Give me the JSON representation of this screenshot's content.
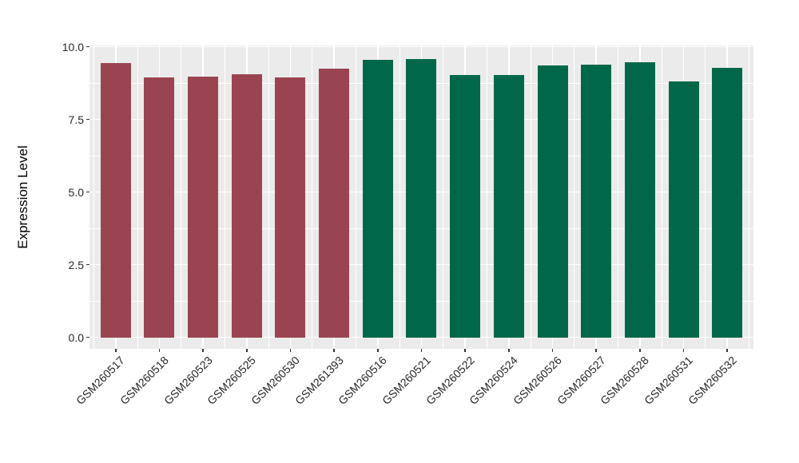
{
  "figure": {
    "background": "#FFFFFF"
  },
  "chart_data": {
    "type": "bar",
    "title": "",
    "xlabel": "",
    "ylabel": "Expression Level",
    "ylim": [
      0,
      10.04
    ],
    "grid": true,
    "legend_position": "none",
    "panel_background": "#EBEBEB",
    "grid_color": "#FFFFFF",
    "tick_color": "#333333",
    "tick_label_color": "#262626",
    "ytick_labels": [
      "0.0",
      "2.5",
      "5.0",
      "7.5",
      "10.0"
    ],
    "ytick_values": [
      0,
      2.5,
      5,
      7.5,
      10
    ],
    "yminor_values": [
      1.25,
      3.75,
      6.25,
      8.75
    ],
    "categories": [
      "GSM260517",
      "GSM260518",
      "GSM260523",
      "GSM260525",
      "GSM260530",
      "GSM261393",
      "GSM260516",
      "GSM260521",
      "GSM260522",
      "GSM260524",
      "GSM260526",
      "GSM260527",
      "GSM260528",
      "GSM260531",
      "GSM260532"
    ],
    "values": [
      9.43,
      8.93,
      8.98,
      9.06,
      8.94,
      9.24,
      9.55,
      9.57,
      9.03,
      9.03,
      9.36,
      9.38,
      9.46,
      8.81,
      9.27
    ],
    "bar_groups": [
      "red",
      "red",
      "red",
      "red",
      "red",
      "red",
      "green",
      "green",
      "green",
      "green",
      "green",
      "green",
      "green",
      "green",
      "green"
    ],
    "group_colors": {
      "red": "#9B4451",
      "green": "#006848"
    }
  }
}
